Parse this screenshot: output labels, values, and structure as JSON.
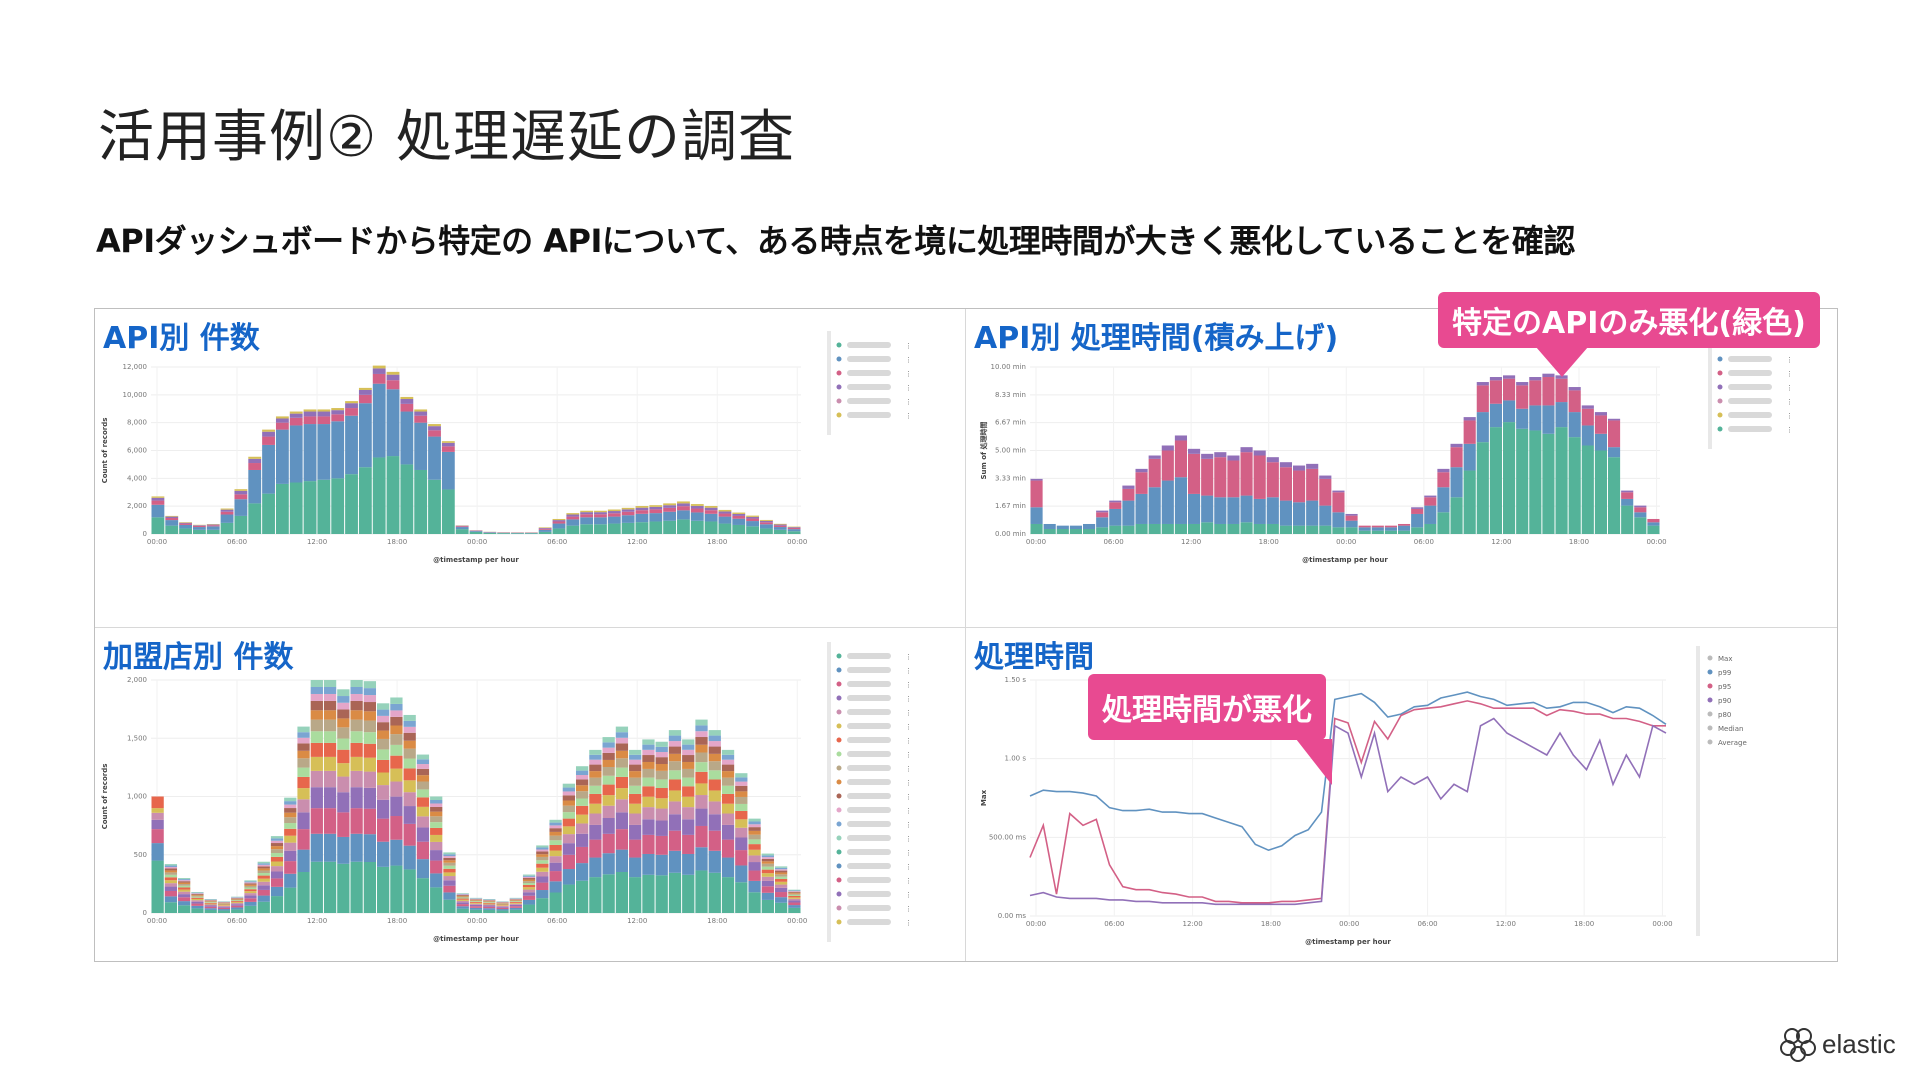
{
  "slide": {
    "title": "活用事例② 処理遅延の調査",
    "subtitle": "APIダッシュボードから特定の APIについて、ある時点を境に処理時間が大きく悪化していることを確認",
    "logo_text": "elastic"
  },
  "callouts": {
    "green_worse": "特定のAPIのみ悪化(緑色)",
    "latency_worse": "処理時間が悪化"
  },
  "colors": {
    "green": "#54b399",
    "blue": "#6092c0",
    "pink": "#d36086",
    "purple": "#9170b8",
    "tan": "#ca8eae",
    "yellow": "#d6bf57",
    "salmon": "#e7664c",
    "teal": "#aadc9e",
    "callout": "#e84a91",
    "title_blue": "#1565c8"
  },
  "chart_data": [
    {
      "id": "api-count",
      "type": "bar",
      "title": "API別 件数",
      "xlabel": "@timestamp per hour",
      "ylabel": "Count of records",
      "yticks": [
        "0",
        "2,000",
        "4,000",
        "6,000",
        "8,000",
        "10,000",
        "12,000"
      ],
      "ylim": [
        0,
        12000
      ],
      "xticks": [
        "00:00",
        "06:00",
        "12:00",
        "18:00",
        "00:00",
        "06:00",
        "12:00",
        "18:00",
        "00:00"
      ],
      "series": [
        {
          "name": "",
          "color": "#54b399",
          "values": [
            1200,
            600,
            400,
            300,
            300,
            800,
            1300,
            2200,
            2900,
            3600,
            3700,
            3800,
            3900,
            4000,
            4300,
            4800,
            5500,
            5600,
            5000,
            4600,
            3900,
            3200,
            350,
            150,
            80,
            60,
            50,
            50,
            150,
            400,
            600,
            700,
            700,
            750,
            800,
            850,
            900,
            950,
            1050,
            950,
            900,
            750,
            650,
            550,
            400,
            300,
            200
          ]
        },
        {
          "name": "",
          "color": "#6092c0",
          "values": [
            900,
            400,
            250,
            200,
            250,
            600,
            1200,
            2400,
            3500,
            3900,
            4100,
            4100,
            4000,
            4100,
            4200,
            4600,
            5300,
            4800,
            3800,
            3400,
            3100,
            2700,
            150,
            60,
            40,
            30,
            30,
            30,
            150,
            350,
            450,
            500,
            500,
            500,
            550,
            600,
            600,
            650,
            650,
            600,
            550,
            500,
            450,
            380,
            300,
            200,
            150
          ]
        },
        {
          "name": "",
          "color": "#d36086",
          "values": [
            300,
            150,
            100,
            80,
            80,
            200,
            350,
            500,
            600,
            500,
            550,
            550,
            550,
            500,
            550,
            600,
            700,
            650,
            550,
            500,
            450,
            400,
            60,
            30,
            20,
            20,
            20,
            20,
            80,
            150,
            200,
            220,
            220,
            240,
            250,
            260,
            270,
            280,
            300,
            280,
            260,
            220,
            200,
            180,
            140,
            100,
            80
          ]
        },
        {
          "name": "",
          "color": "#9170b8",
          "values": [
            200,
            100,
            60,
            50,
            50,
            150,
            250,
            300,
            350,
            300,
            300,
            350,
            350,
            300,
            350,
            350,
            400,
            400,
            350,
            300,
            300,
            250,
            40,
            20,
            10,
            10,
            10,
            10,
            60,
            100,
            150,
            150,
            150,
            160,
            170,
            180,
            180,
            190,
            200,
            190,
            180,
            150,
            140,
            120,
            100,
            80,
            60
          ]
        },
        {
          "name": "",
          "color": "#d6bf57",
          "values": [
            100,
            50,
            40,
            30,
            30,
            80,
            120,
            150,
            150,
            150,
            150,
            150,
            150,
            150,
            150,
            150,
            200,
            200,
            150,
            150,
            150,
            120,
            20,
            10,
            10,
            10,
            10,
            10,
            40,
            80,
            100,
            100,
            100,
            110,
            110,
            120,
            120,
            130,
            140,
            130,
            120,
            110,
            100,
            90,
            70,
            50,
            40
          ]
        }
      ]
    },
    {
      "id": "api-latency",
      "type": "bar",
      "title": "API別 処理時間(積み上げ)",
      "xlabel": "@timestamp per hour",
      "ylabel": "Sum of 処理時間",
      "yticks": [
        "0.00 min",
        "1.67 min",
        "3.33 min",
        "5.00 min",
        "6.67 min",
        "8.33 min",
        "10.00 min"
      ],
      "ylim": [
        0,
        10
      ],
      "xticks": [
        "00:00",
        "06:00",
        "12:00",
        "18:00",
        "00:00",
        "06:00",
        "12:00",
        "18:00",
        "00:00"
      ],
      "series": [
        {
          "name": "",
          "color": "#54b399",
          "values": [
            0.6,
            0.3,
            0.3,
            0.3,
            0.3,
            0.4,
            0.5,
            0.5,
            0.6,
            0.6,
            0.6,
            0.6,
            0.6,
            0.7,
            0.6,
            0.6,
            0.7,
            0.6,
            0.6,
            0.5,
            0.5,
            0.5,
            0.5,
            0.4,
            0.4,
            0.2,
            0.2,
            0.2,
            0.2,
            0.4,
            0.6,
            1.3,
            2.2,
            3.8,
            5.5,
            6.4,
            6.7,
            6.3,
            6.2,
            6.0,
            6.4,
            5.8,
            5.3,
            5.0,
            4.6,
            1.7,
            1.0,
            0.5
          ]
        },
        {
          "name": "",
          "color": "#6092c0",
          "values": [
            1.0,
            0.3,
            0.2,
            0.2,
            0.3,
            0.6,
            1.0,
            1.5,
            1.8,
            2.2,
            2.6,
            2.8,
            1.8,
            1.6,
            1.6,
            1.6,
            1.6,
            1.5,
            1.6,
            1.5,
            1.4,
            1.5,
            1.2,
            0.9,
            0.4,
            0.2,
            0.2,
            0.2,
            0.3,
            0.8,
            1.1,
            1.5,
            1.8,
            1.6,
            1.8,
            1.4,
            1.3,
            1.2,
            1.5,
            1.7,
            1.5,
            1.5,
            1.2,
            1.0,
            0.6,
            0.4,
            0.3,
            0.2
          ]
        },
        {
          "name": "",
          "color": "#d36086",
          "values": [
            1.6,
            0.0,
            0.0,
            0.0,
            0.0,
            0.3,
            0.4,
            0.7,
            1.3,
            1.7,
            1.8,
            2.2,
            2.4,
            2.2,
            2.4,
            2.2,
            2.6,
            2.6,
            2.1,
            2.0,
            1.9,
            1.9,
            1.6,
            1.2,
            0.3,
            0.1,
            0.1,
            0.1,
            0.1,
            0.3,
            0.5,
            0.9,
            1.2,
            1.4,
            1.6,
            1.4,
            1.3,
            1.4,
            1.5,
            1.7,
            1.4,
            1.3,
            1.0,
            1.1,
            1.6,
            0.4,
            0.3,
            0.2
          ]
        },
        {
          "name": "",
          "color": "#9170b8",
          "values": [
            0.1,
            0.0,
            0.0,
            0.0,
            0.0,
            0.1,
            0.1,
            0.2,
            0.2,
            0.2,
            0.3,
            0.3,
            0.3,
            0.3,
            0.3,
            0.3,
            0.3,
            0.3,
            0.3,
            0.3,
            0.3,
            0.3,
            0.2,
            0.1,
            0.1,
            0.0,
            0.0,
            0.0,
            0.0,
            0.1,
            0.1,
            0.2,
            0.2,
            0.2,
            0.2,
            0.2,
            0.2,
            0.2,
            0.2,
            0.2,
            0.2,
            0.2,
            0.2,
            0.2,
            0.1,
            0.1,
            0.1,
            0.0
          ]
        }
      ]
    },
    {
      "id": "store-count",
      "type": "bar",
      "title": "加盟店別 件数",
      "xlabel": "@timestamp per hour",
      "ylabel": "Count of records",
      "yticks": [
        "0",
        "500",
        "1,000",
        "1,500",
        "2,000"
      ],
      "ylim": [
        0,
        2000
      ],
      "xticks": [
        "00:00",
        "06:00",
        "12:00",
        "18:00",
        "00:00",
        "06:00",
        "12:00",
        "18:00",
        "00:00"
      ],
      "totals": [
        1000,
        420,
        300,
        180,
        120,
        100,
        140,
        280,
        440,
        660,
        990,
        1600,
        2000,
        2000,
        1920,
        2000,
        1990,
        1800,
        1850,
        1700,
        1360,
        1000,
        520,
        170,
        130,
        120,
        100,
        130,
        330,
        580,
        800,
        1110,
        1260,
        1400,
        1510,
        1600,
        1400,
        1490,
        1470,
        1570,
        1490,
        1660,
        1570,
        1400,
        1200,
        810,
        510,
        400,
        200
      ]
    },
    {
      "id": "latency",
      "type": "line",
      "title": "処理時間",
      "xlabel": "@timestamp per hour",
      "ylabel": "Max",
      "yticks": [
        "0.00 ms",
        "500.00 ms",
        "1.00 s",
        "1.50 s"
      ],
      "ylim": [
        0,
        1.5
      ],
      "legend": [
        "Max",
        "p99",
        "p95",
        "p90",
        "p80",
        "Median",
        "Average"
      ],
      "xticks": [
        "00:00",
        "06:00",
        "12:00",
        "18:00",
        "00:00",
        "06:00",
        "12:00",
        "18:00",
        "00:00"
      ],
      "series": [
        {
          "name": "Max",
          "color": "#6092c0",
          "values": [
            0.82,
            0.86,
            0.85,
            0.85,
            0.84,
            0.82,
            0.74,
            0.72,
            0.72,
            0.73,
            0.71,
            0.71,
            0.7,
            0.7,
            0.67,
            0.64,
            0.61,
            0.49,
            0.45,
            0.48,
            0.55,
            0.59,
            0.71,
            1.48,
            1.5,
            1.52,
            1.46,
            1.36,
            1.38,
            1.43,
            1.44,
            1.49,
            1.51,
            1.53,
            1.5,
            1.48,
            1.44,
            1.45,
            1.46,
            1.42,
            1.43,
            1.46,
            1.46,
            1.43,
            1.39,
            1.43,
            1.42,
            1.37,
            1.31
          ]
        },
        {
          "name": "p99",
          "color": "#d36086",
          "values": [
            0.4,
            0.62,
            0.15,
            0.7,
            0.62,
            0.66,
            0.35,
            0.2,
            0.18,
            0.18,
            0.16,
            0.15,
            0.13,
            0.13,
            0.1,
            0.1,
            0.09,
            0.09,
            0.09,
            0.1,
            0.1,
            0.11,
            0.12,
            1.35,
            1.32,
            1.05,
            1.33,
            1.21,
            1.37,
            1.41,
            1.42,
            1.43,
            1.45,
            1.47,
            1.45,
            1.42,
            1.42,
            1.42,
            1.42,
            1.37,
            1.41,
            1.4,
            1.38,
            1.38,
            1.35,
            1.35,
            1.33,
            1.3,
            1.3
          ]
        },
        {
          "name": "p95",
          "color": "#9170b8",
          "values": [
            0.14,
            0.16,
            0.13,
            0.12,
            0.12,
            0.12,
            0.11,
            0.11,
            0.1,
            0.1,
            0.09,
            0.09,
            0.09,
            0.09,
            0.08,
            0.08,
            0.08,
            0.08,
            0.08,
            0.08,
            0.08,
            0.09,
            0.1,
            1.3,
            1.25,
            0.95,
            1.25,
            0.85,
            0.95,
            0.9,
            0.95,
            0.8,
            0.9,
            0.85,
            1.3,
            1.35,
            1.25,
            1.2,
            1.15,
            1.1,
            1.25,
            1.1,
            1.0,
            1.2,
            0.9,
            1.1,
            0.95,
            1.3,
            1.25
          ]
        }
      ]
    }
  ]
}
